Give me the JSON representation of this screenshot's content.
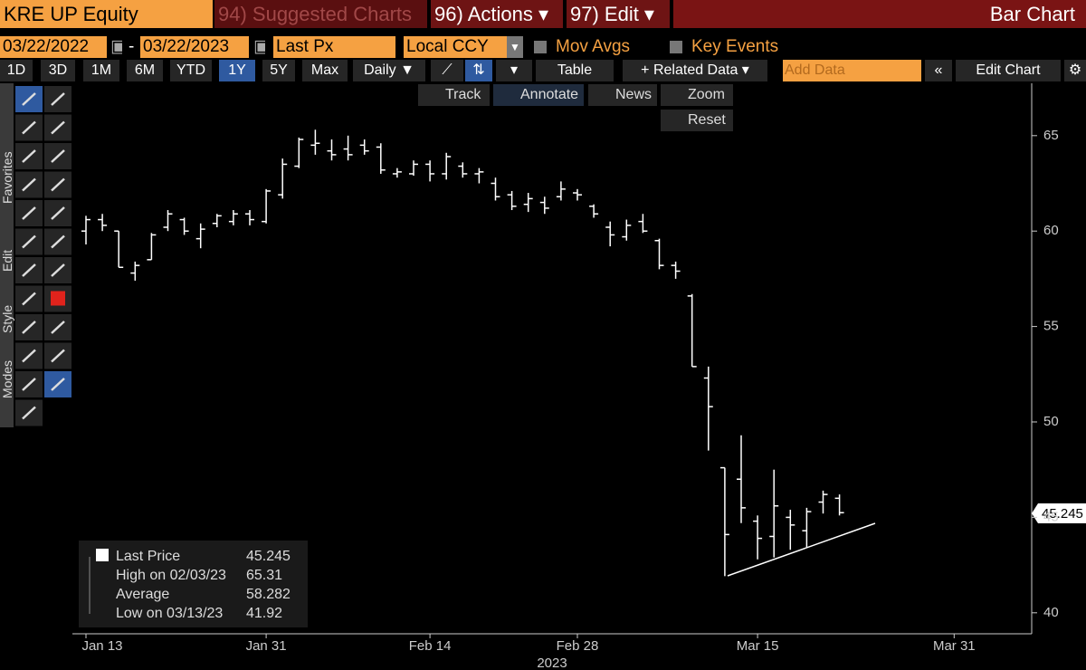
{
  "toolbar": {
    "security": "KRE UP Equity",
    "suggested": "94) Suggested Charts",
    "actions": "96) Actions ▾",
    "edit": "97) Edit ▾",
    "chart_type": "Bar Chart"
  },
  "settings": {
    "start_date": "03/22/2022",
    "dash": "-",
    "end_date": "03/22/2023",
    "field": "Last Px",
    "currency": "Local CCY",
    "mov_avgs": "Mov Avgs",
    "key_events": "Key Events"
  },
  "periods": [
    "1D",
    "3D",
    "1M",
    "6M",
    "YTD",
    "1Y",
    "5Y",
    "Max"
  ],
  "controls": {
    "frequency": "Daily ▼",
    "table": "Table",
    "related": "+ Related Data ▾",
    "add_data": "Add Data",
    "edit_chart": "Edit Chart"
  },
  "chart_tools": [
    "Track",
    "Annotate",
    "News",
    "Zoom",
    "Reset"
  ],
  "side_tabs": [
    "Favorites",
    "Edit",
    "Style",
    "Modes"
  ],
  "legend": [
    {
      "label": "Last Price",
      "value": "45.245"
    },
    {
      "label": "High on 02/03/23",
      "value": "65.31"
    },
    {
      "label": "Average",
      "value": "58.282"
    },
    {
      "label": "Low on 03/13/23",
      "value": "41.92"
    }
  ],
  "chart_data": {
    "type": "ohlc",
    "color": "#ffffff",
    "xlabel": "2023",
    "x": [
      "2023-01-13",
      "2023-01-17",
      "2023-01-18",
      "2023-01-19",
      "2023-01-20",
      "2023-01-23",
      "2023-01-24",
      "2023-01-25",
      "2023-01-26",
      "2023-01-27",
      "2023-01-30",
      "2023-01-31",
      "2023-02-01",
      "2023-02-02",
      "2023-02-03",
      "2023-02-06",
      "2023-02-07",
      "2023-02-08",
      "2023-02-09",
      "2023-02-10",
      "2023-02-13",
      "2023-02-14",
      "2023-02-15",
      "2023-02-16",
      "2023-02-17",
      "2023-02-21",
      "2023-02-22",
      "2023-02-23",
      "2023-02-24",
      "2023-02-27",
      "2023-02-28",
      "2023-03-01",
      "2023-03-02",
      "2023-03-03",
      "2023-03-06",
      "2023-03-07",
      "2023-03-08",
      "2023-03-09",
      "2023-03-10",
      "2023-03-13",
      "2023-03-14",
      "2023-03-15",
      "2023-03-16",
      "2023-03-17",
      "2023-03-20",
      "2023-03-21",
      "2023-03-22"
    ],
    "open": [
      60.0,
      60.6,
      60.0,
      57.8,
      58.5,
      60.2,
      60.6,
      59.6,
      60.4,
      60.5,
      60.9,
      60.5,
      61.9,
      63.4,
      64.5,
      64.2,
      64.3,
      64.5,
      64.4,
      63.0,
      63.0,
      63.5,
      63.0,
      63.4,
      63.0,
      62.5,
      61.9,
      61.4,
      61.5,
      61.8,
      62.0,
      61.3,
      60.2,
      59.7,
      60.5,
      59.5,
      58.2,
      56.6,
      52.3,
      47.6,
      47.0,
      44.8,
      44.0,
      45.0,
      44.3,
      45.8,
      46.0
    ],
    "high": [
      60.8,
      60.9,
      60.0,
      58.4,
      59.9,
      61.1,
      60.7,
      60.4,
      60.9,
      61.1,
      61.1,
      62.2,
      63.8,
      64.9,
      65.31,
      64.8,
      65.0,
      64.8,
      64.6,
      63.3,
      63.7,
      63.7,
      64.1,
      63.6,
      63.3,
      62.8,
      62.1,
      62.0,
      61.8,
      62.6,
      62.2,
      61.4,
      60.5,
      60.6,
      60.9,
      59.6,
      58.4,
      56.7,
      52.9,
      47.6,
      49.3,
      45.1,
      47.5,
      45.4,
      45.5,
      46.4,
      46.2
    ],
    "low": [
      59.3,
      60.0,
      58.1,
      57.4,
      58.5,
      60.0,
      59.8,
      59.1,
      60.2,
      60.3,
      60.3,
      60.4,
      61.7,
      63.3,
      64.0,
      63.7,
      63.7,
      64.0,
      63.0,
      62.8,
      62.9,
      62.6,
      62.7,
      62.8,
      62.5,
      61.6,
      61.1,
      61.0,
      60.9,
      61.6,
      61.6,
      60.7,
      59.2,
      59.5,
      59.9,
      58.0,
      57.5,
      52.9,
      48.5,
      41.92,
      44.7,
      42.8,
      42.9,
      43.3,
      43.4,
      45.2,
      45.1
    ],
    "close": [
      60.6,
      60.3,
      58.1,
      58.2,
      59.8,
      60.9,
      60.0,
      60.1,
      60.8,
      60.9,
      60.6,
      62.1,
      63.5,
      64.8,
      64.6,
      64.0,
      64.0,
      64.2,
      63.2,
      63.1,
      63.5,
      63.0,
      63.9,
      63.0,
      63.1,
      61.8,
      61.3,
      61.7,
      61.2,
      62.2,
      61.9,
      60.9,
      59.8,
      60.3,
      60.0,
      58.2,
      57.9,
      52.9,
      50.8,
      44.1,
      45.5,
      43.9,
      45.6,
      44.6,
      45.3,
      46.2,
      45.245
    ],
    "ylim": [
      38.9,
      67.6
    ],
    "yticks": [
      40,
      45,
      50,
      55,
      60,
      65
    ],
    "xticks": [
      {
        "value": "2023-01-13",
        "label": "Jan 13"
      },
      {
        "value": "2023-01-31",
        "label": "Jan 31"
      },
      {
        "value": "2023-02-14",
        "label": "Feb 14"
      },
      {
        "value": "2023-02-28",
        "label": "Feb 28"
      },
      {
        "value": "2023-03-15",
        "label": "Mar 15"
      },
      {
        "value": "2023-03-31",
        "label": "Mar 31"
      }
    ]
  }
}
